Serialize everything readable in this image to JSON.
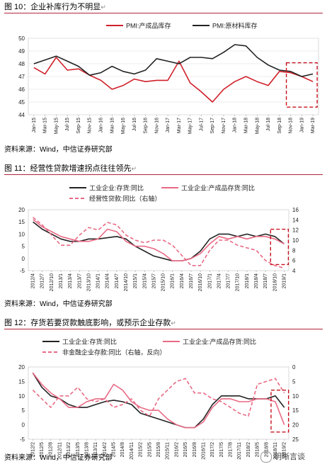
{
  "figures": [
    {
      "caption": "图 10：企业补库行为不明显"
    },
    {
      "caption": "图 11：经营性贷款增速拐点往往领先"
    },
    {
      "caption": "图 12：存货若要贷款触底影响，或预示企业存款"
    }
  ],
  "source": "资料来源：Wind，中信证券研究部",
  "watermark": "明晰言谈",
  "chart_data": [
    {
      "type": "line",
      "x": [
        "Jan-15",
        "Mar-15",
        "May-15",
        "Jul-15",
        "Sep-15",
        "Nov-15",
        "Jan-16",
        "Mar-16",
        "May-16",
        "Jul-16",
        "Sep-16",
        "Nov-16",
        "Jan-17",
        "Mar-17",
        "May-17",
        "Jul-17",
        "Sep-17",
        "Nov-17",
        "Jan-18",
        "Mar-18",
        "May-18",
        "Jul-18",
        "Sep-18",
        "Nov-18",
        "Jan-19",
        "Mar-19"
      ],
      "ylim": [
        44,
        50
      ],
      "yticks": [
        44,
        45,
        46,
        47,
        48,
        49,
        50
      ],
      "legend": "top",
      "series": [
        {
          "name": "PMI:产成品库存",
          "color": "#d0202a",
          "values": [
            47.7,
            47.2,
            48.5,
            47.5,
            47.6,
            47.1,
            46.7,
            46.0,
            46.3,
            46.8,
            46.6,
            46.7,
            46.7,
            48.2,
            46.5,
            45.8,
            45.0,
            46.0,
            46.6,
            47.0,
            46.6,
            46.3,
            47.4,
            47.3,
            47.0,
            46.6
          ]
        },
        {
          "name": "PMI:原材料库存",
          "color": "#222222",
          "values": [
            48.0,
            48.3,
            48.6,
            48.2,
            47.8,
            47.1,
            47.3,
            47.8,
            47.4,
            47.2,
            47.5,
            48.4,
            48.2,
            48.0,
            48.5,
            48.5,
            48.4,
            48.9,
            49.5,
            49.4,
            48.5,
            47.9,
            47.5,
            47.4,
            47.0,
            47.2
          ]
        }
      ],
      "highlight_x": [
        "Nov-18",
        "Mar-19"
      ]
    },
    {
      "type": "line",
      "x": [
        "2012/4",
        "2012/7",
        "2012/10",
        "2013/1",
        "2013/4",
        "2013/7",
        "2013/10",
        "2014/1",
        "2014/4",
        "2014/7",
        "2014/10",
        "2015/1",
        "2015/4",
        "2015/7",
        "2015/10",
        "2016/1",
        "2016/4",
        "2016/7",
        "2016/10",
        "2017/1",
        "2017/4",
        "2017/7",
        "2017/10",
        "2018/1",
        "2018/4",
        "2018/7",
        "2018/10",
        "2019/1"
      ],
      "ylim_left": [
        -5,
        20
      ],
      "yticks_left": [
        -5,
        0,
        5,
        10,
        15,
        20
      ],
      "ylim_right": [
        4,
        16
      ],
      "yticks_right": [
        4,
        6,
        8,
        10,
        12,
        14,
        16
      ],
      "legend": "top",
      "series": [
        {
          "name": "工业企业:存货:同比",
          "color": "#222222",
          "axis": "left",
          "values": [
            15,
            12,
            10,
            8,
            7,
            7,
            8,
            8,
            8.5,
            9,
            8,
            5,
            3,
            1,
            0,
            -1,
            -1,
            0,
            3,
            8,
            10,
            10,
            9,
            10,
            9,
            10,
            9,
            6
          ]
        },
        {
          "name": "工业企业:产成品存货:同比",
          "color": "#e86a84",
          "axis": "left",
          "values": [
            16,
            13,
            11,
            9,
            8,
            7,
            7,
            8,
            12,
            11,
            7,
            5,
            5,
            4,
            2,
            -1,
            -1,
            0,
            2,
            6,
            9,
            8,
            9,
            8,
            9,
            9,
            8,
            6
          ]
        },
        {
          "name": "经营性贷款:同比（右轴）",
          "color": "#e86a84",
          "axis": "right",
          "dashed": true,
          "values": [
            14.5,
            13,
            11,
            9,
            9,
            11,
            12.5,
            12,
            13.5,
            13,
            11,
            10,
            9.5,
            10,
            10,
            9,
            7,
            5,
            5,
            8,
            10,
            10,
            9,
            8.5,
            8,
            6,
            5,
            4.5
          ]
        }
      ],
      "highlight_x": [
        "2018/10",
        "2019/1"
      ]
    },
    {
      "type": "line",
      "x": [
        "2012/2",
        "2012/5",
        "2012/8",
        "2012/11",
        "2013/2",
        "2013/5",
        "2013/8",
        "2013/11",
        "2014/2",
        "2014/5",
        "2014/8",
        "2014/11",
        "2015/2",
        "2015/5",
        "2015/8",
        "2015/11",
        "2016/2",
        "2016/5",
        "2016/8",
        "2016/11",
        "2017/2",
        "2017/5",
        "2017/8",
        "2017/11",
        "2018/2",
        "2018/5",
        "2018/8",
        "2018/11",
        "2019/2"
      ],
      "ylim_left": [
        -5,
        20
      ],
      "yticks_left": [
        -5,
        0,
        5,
        10,
        15,
        20
      ],
      "ylim_right": [
        25,
        0
      ],
      "yticks_right": [
        25,
        20,
        15,
        10,
        5,
        0
      ],
      "legend": "top",
      "series": [
        {
          "name": "工业企业:存货:同比",
          "color": "#222222",
          "axis": "left",
          "values": [
            18,
            13,
            10,
            9,
            7,
            6,
            6,
            7,
            8,
            8.5,
            8,
            7,
            4,
            3,
            2,
            1,
            0,
            -1,
            -1,
            2,
            7,
            10,
            10,
            10,
            9,
            9,
            9,
            10,
            6
          ]
        },
        {
          "name": "工业企业:产成品存货:同比",
          "color": "#e86a84",
          "axis": "left",
          "values": [
            18,
            14,
            11,
            9,
            6,
            6,
            8,
            9,
            9,
            14,
            12,
            8,
            6,
            5,
            5,
            2,
            0,
            -1,
            -1,
            1,
            6,
            9,
            9,
            8,
            8,
            9,
            9,
            8,
            0
          ]
        },
        {
          "name": "非金融企业存款:同比（右轴，反向）",
          "color": "#e86a84",
          "axis": "right",
          "dashed": true,
          "values": [
            8,
            11,
            14,
            10,
            10,
            7,
            11,
            12,
            11,
            14,
            13,
            11,
            15,
            17,
            11,
            8,
            5,
            4,
            9,
            9,
            11,
            12,
            14,
            16,
            17,
            6,
            5,
            4,
            9
          ]
        }
      ],
      "highlight_x": [
        "2018/11",
        "2019/2"
      ]
    }
  ]
}
